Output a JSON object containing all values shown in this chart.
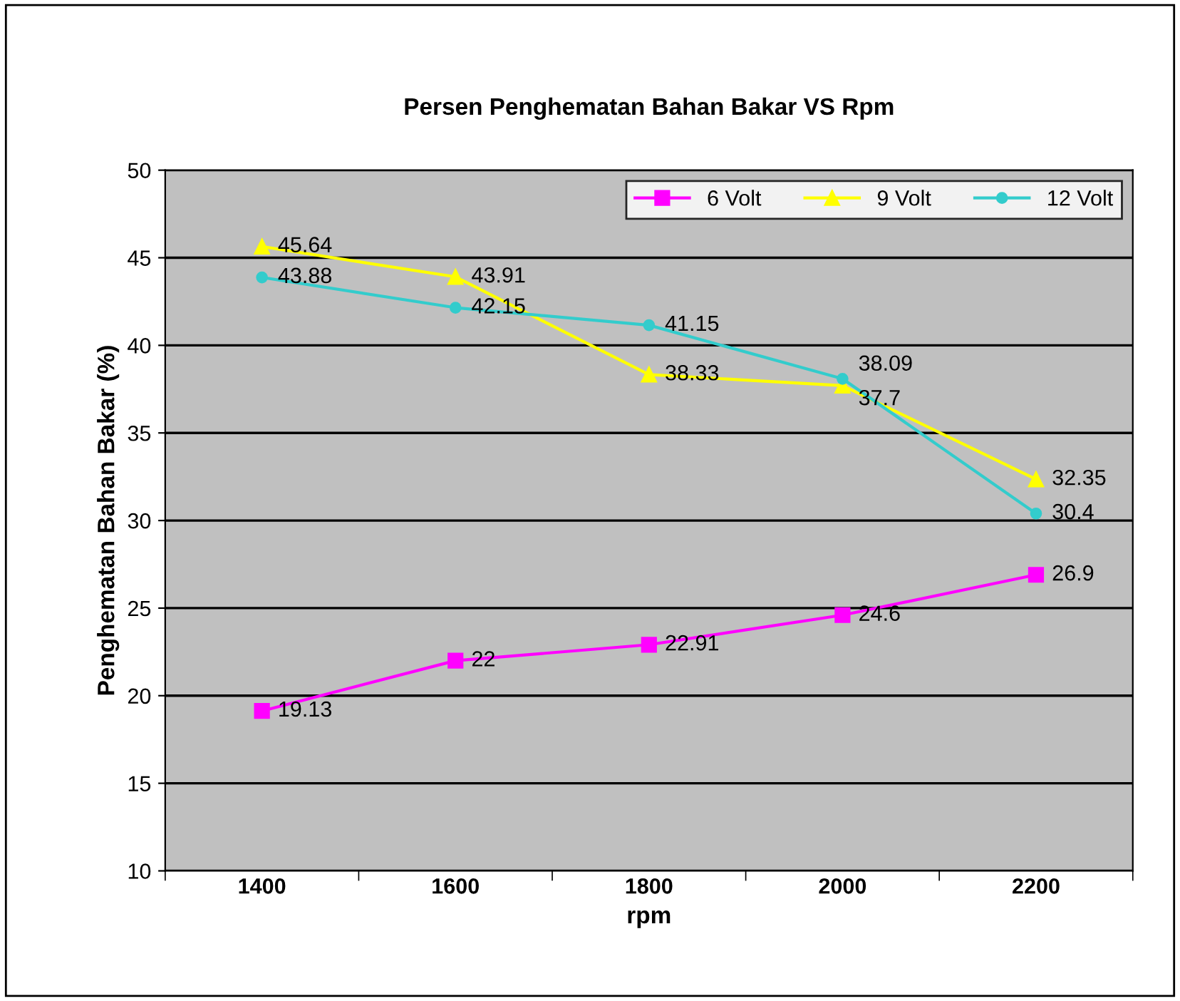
{
  "chart_data": {
    "type": "line",
    "title": "Persen Penghematan Bahan Bakar VS Rpm",
    "xlabel": "rpm",
    "ylabel": "Penghematan Bahan Bakar (%)",
    "categories": [
      "1400",
      "1600",
      "1800",
      "2000",
      "2200"
    ],
    "series": [
      {
        "name": "6 Volt",
        "color": "#ff00ff",
        "marker": "square",
        "values": [
          19.13,
          22,
          22.91,
          24.6,
          26.9
        ]
      },
      {
        "name": "9 Volt",
        "color": "#ffff00",
        "marker": "triangle",
        "values": [
          45.64,
          43.91,
          38.33,
          37.7,
          32.35
        ]
      },
      {
        "name": "12 Volt",
        "color": "#33cccc",
        "marker": "circle",
        "values": [
          43.88,
          42.15,
          41.15,
          38.09,
          30.4
        ]
      }
    ],
    "ylim": [
      10,
      50
    ],
    "yticks": [
      10,
      15,
      20,
      25,
      30,
      35,
      40,
      45,
      50
    ],
    "grid": "y",
    "legend": "top right",
    "data_labels": true,
    "line_style": "solid"
  }
}
